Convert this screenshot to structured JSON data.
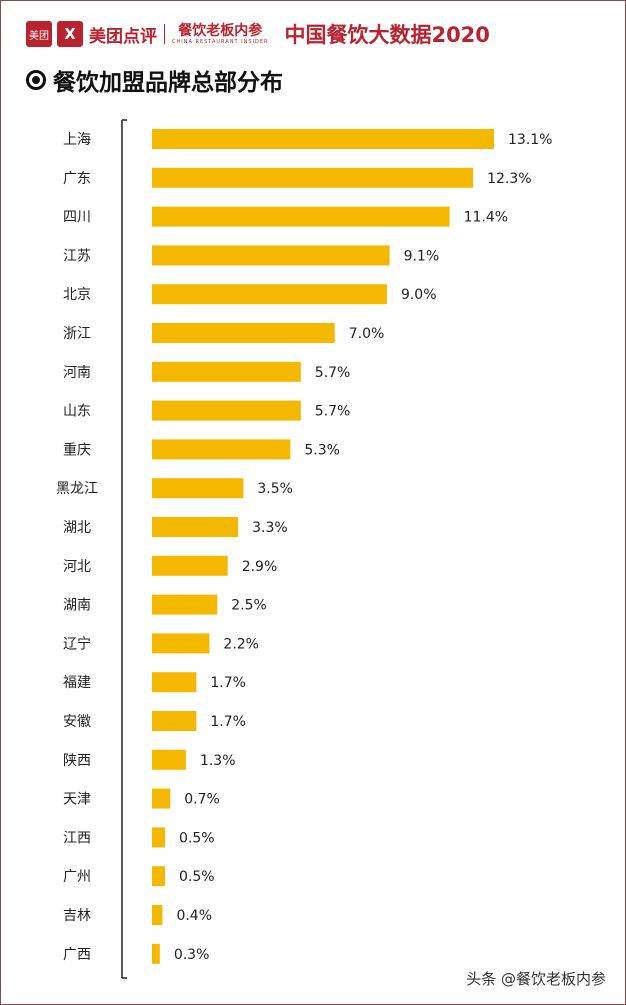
{
  "header": {
    "logo_box": "美团",
    "logo_mark": "X",
    "brand": "美团点评",
    "brand2_cn": "餐饮老板内参",
    "brand2_en": "CHINA RESTAURANT INSIDER",
    "report": "中国餐饮大数据2020"
  },
  "title": "餐饮加盟品牌总部分布",
  "watermark": "头条 @餐饮老板内参",
  "colors": {
    "bar": "#f5b800",
    "brand": "#b8232f",
    "axis": "#222222"
  },
  "chart_data": {
    "type": "bar",
    "orientation": "horizontal",
    "title": "餐饮加盟品牌总部分布",
    "categories": [
      "上海",
      "广东",
      "四川",
      "江苏",
      "北京",
      "浙江",
      "河南",
      "山东",
      "重庆",
      "黑龙江",
      "湖北",
      "河北",
      "湖南",
      "辽宁",
      "福建",
      "安徽",
      "陕西",
      "天津",
      "江西",
      "广州",
      "吉林",
      "广西"
    ],
    "values": [
      13.1,
      12.3,
      11.4,
      9.1,
      9.0,
      7.0,
      5.7,
      5.7,
      5.3,
      3.5,
      3.3,
      2.9,
      2.5,
      2.2,
      1.7,
      1.7,
      1.3,
      0.7,
      0.5,
      0.5,
      0.4,
      0.3
    ],
    "value_labels": [
      "13.1%",
      "12.3%",
      "11.4%",
      "9.1%",
      "9.0%",
      "7.0%",
      "5.7%",
      "5.7%",
      "5.3%",
      "3.5%",
      "3.3%",
      "2.9%",
      "2.5%",
      "2.2%",
      "1.7%",
      "1.7%",
      "1.3%",
      "0.7%",
      "0.5%",
      "0.5%",
      "0.4%",
      "0.3%"
    ],
    "unit": "%",
    "xlim": [
      0,
      13.1
    ],
    "grid": false,
    "legend": "none"
  }
}
